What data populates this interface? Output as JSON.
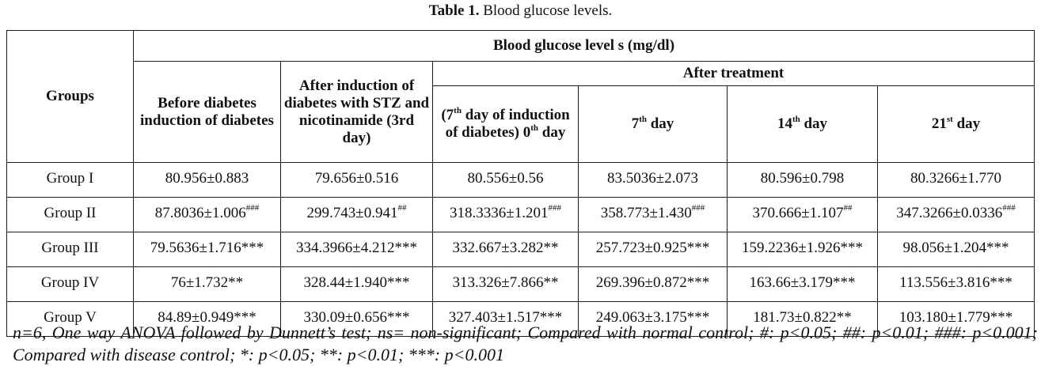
{
  "caption": {
    "label": "Table 1.",
    "text": " Blood glucose levels."
  },
  "table": {
    "group_header": "Groups",
    "span_header": "Blood glucose level s (mg/dl)",
    "after_treatment_header": "After treatment",
    "col_before": "Before diabetes induction of diabetes",
    "col_after_induction": "After induction of diabetes with STZ and nicotinamide (3rd day)",
    "col_day0": {
      "pre": "(7",
      "sup1": "th",
      "mid": " day of induction of diabetes) 0",
      "sup2": "th",
      "post": " day"
    },
    "col_day7": {
      "num": "7",
      "sup": "th",
      "post": " day"
    },
    "col_day14": {
      "num": "14",
      "sup": "th",
      "post": " day"
    },
    "col_day21": {
      "num": "21",
      "sup": "st",
      "post": " day"
    },
    "rows": [
      {
        "group": "Group I",
        "cells": [
          {
            "value": "80.956±0.883",
            "mark": ""
          },
          {
            "value": "79.656±0.516",
            "mark": ""
          },
          {
            "value": "80.556±0.56",
            "mark": ""
          },
          {
            "value": "83.5036±2.073",
            "mark": ""
          },
          {
            "value": "80.596±0.798",
            "mark": ""
          },
          {
            "value": "80.3266±1.770",
            "mark": ""
          }
        ]
      },
      {
        "group": "Group II",
        "cells": [
          {
            "value": "87.8036±1.006",
            "mark": "###"
          },
          {
            "value": "299.743±0.941",
            "mark": "##"
          },
          {
            "value": "318.3336±1.201",
            "mark": "###"
          },
          {
            "value": "358.773±1.430",
            "mark": "###"
          },
          {
            "value": "370.666±1.107",
            "mark": "##"
          },
          {
            "value": "347.3266±0.0336",
            "mark": "###"
          }
        ]
      },
      {
        "group": "Group III",
        "cells": [
          {
            "value": "79.5636±1.716***",
            "mark": ""
          },
          {
            "value": "334.3966±4.212***",
            "mark": ""
          },
          {
            "value": "332.667±3.282**",
            "mark": ""
          },
          {
            "value": "257.723±0.925***",
            "mark": ""
          },
          {
            "value": "159.2236±1.926***",
            "mark": ""
          },
          {
            "value": "98.056±1.204***",
            "mark": ""
          }
        ]
      },
      {
        "group": "Group IV",
        "cells": [
          {
            "value": "76±1.732**",
            "mark": ""
          },
          {
            "value": "328.44±1.940***",
            "mark": ""
          },
          {
            "value": "313.326±7.866**",
            "mark": ""
          },
          {
            "value": "269.396±0.872***",
            "mark": ""
          },
          {
            "value": "163.66±3.179***",
            "mark": ""
          },
          {
            "value": "113.556±3.816***",
            "mark": ""
          }
        ]
      },
      {
        "group": "Group V",
        "cells": [
          {
            "value": "84.89±0.949***",
            "mark": ""
          },
          {
            "value": "330.09±0.656***",
            "mark": ""
          },
          {
            "value": "327.403±1.517***",
            "mark": ""
          },
          {
            "value": "249.063±3.175***",
            "mark": ""
          },
          {
            "value": "181.73±0.822**",
            "mark": ""
          },
          {
            "value": "103.180±1.779***",
            "mark": ""
          }
        ]
      }
    ]
  },
  "footnote": "n=6, One way ANOVA followed by Dunnett’s test; ns= non-significant; Compared with normal control; #: p<0.05; ##: p<0.01; ###: p<0.001; Compared with disease control; *: p<0.05; **: p<0.01; ***: p<0.001"
}
